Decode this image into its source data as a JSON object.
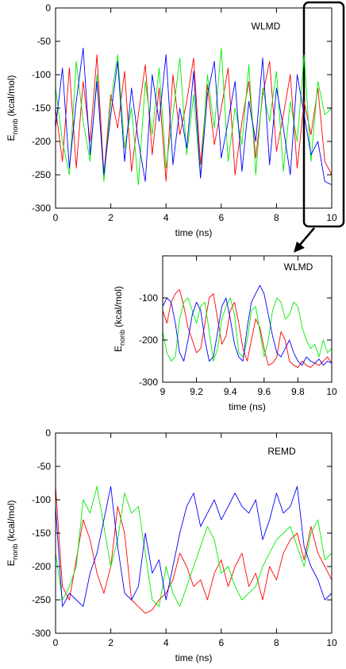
{
  "chart_data": [
    {
      "type": "line",
      "annotation": "WLMD",
      "xlabel": "time (ns)",
      "ylabel": "E",
      "ylabel_sub": "nonb",
      "ylabel_unit": "(kcal/mol)",
      "xlim": [
        0,
        10
      ],
      "xticks": [
        0,
        2,
        4,
        6,
        8,
        10
      ],
      "ylim": [
        -300,
        0
      ],
      "yticks": [
        0,
        -50,
        -100,
        -150,
        -200,
        -250,
        -300
      ],
      "x": [
        0,
        0.25,
        0.5,
        0.75,
        1,
        1.25,
        1.5,
        1.75,
        2,
        2.25,
        2.5,
        2.75,
        3,
        3.25,
        3.5,
        3.75,
        4,
        4.25,
        4.5,
        4.75,
        5,
        5.25,
        5.5,
        5.75,
        6,
        6.25,
        6.5,
        6.75,
        7,
        7.25,
        7.5,
        7.75,
        8,
        8.25,
        8.5,
        8.75,
        9,
        9.25,
        9.5,
        9.75,
        10
      ],
      "series": [
        {
          "color": "#ff0000",
          "values": [
            -150,
            -230,
            -90,
            -240,
            -110,
            -200,
            -70,
            -250,
            -130,
            -180,
            -95,
            -245,
            -160,
            -85,
            -220,
            -120,
            -260,
            -100,
            -190,
            -140,
            -75,
            -235,
            -115,
            -205,
            -150,
            -90,
            -250,
            -170,
            -110,
            -225,
            -130,
            -80,
            -215,
            -160,
            -100,
            -240,
            -140,
            -190,
            -120,
            -230,
            -250
          ]
        },
        {
          "color": "#00ee00",
          "values": [
            -120,
            -200,
            -250,
            -80,
            -170,
            -230,
            -100,
            -260,
            -140,
            -70,
            -210,
            -150,
            -265,
            -110,
            -190,
            -90,
            -240,
            -160,
            -75,
            -220,
            -130,
            -255,
            -100,
            -180,
            -60,
            -230,
            -150,
            -205,
            -85,
            -250,
            -120,
            -170,
            -95,
            -245,
            -140,
            -200,
            -70,
            -230,
            -110,
            -160,
            -150
          ]
        },
        {
          "color": "#0000ff",
          "values": [
            -180,
            -90,
            -240,
            -140,
            -60,
            -220,
            -110,
            -250,
            -160,
            -80,
            -230,
            -120,
            -200,
            -260,
            -100,
            -170,
            -70,
            -235,
            -150,
            -210,
            -95,
            -255,
            -130,
            -80,
            -225,
            -170,
            -110,
            -245,
            -140,
            -200,
            -75,
            -235,
            -120,
            -180,
            -250,
            -100,
            -160,
            -220,
            -200,
            -260,
            -265
          ]
        }
      ]
    },
    {
      "type": "line",
      "annotation": "WLMD",
      "xlabel": "time (ns)",
      "ylabel": "E",
      "ylabel_sub": "nonb",
      "ylabel_unit": "(kcal/mol)",
      "xlim": [
        9,
        10
      ],
      "xticks": [
        9,
        9.2,
        9.4,
        9.6,
        9.8,
        10
      ],
      "ylim": [
        -300,
        0
      ],
      "yticks": [
        -100,
        -200,
        -300
      ],
      "x": [
        9,
        9.025,
        9.05,
        9.075,
        9.1,
        9.125,
        9.15,
        9.175,
        9.2,
        9.225,
        9.25,
        9.275,
        9.3,
        9.325,
        9.35,
        9.375,
        9.4,
        9.425,
        9.45,
        9.475,
        9.5,
        9.525,
        9.55,
        9.575,
        9.6,
        9.625,
        9.65,
        9.675,
        9.7,
        9.725,
        9.75,
        9.775,
        9.8,
        9.825,
        9.85,
        9.875,
        9.9,
        9.925,
        9.95,
        9.975,
        10
      ],
      "series": [
        {
          "color": "#ff0000",
          "values": [
            -130,
            -160,
            -110,
            -90,
            -80,
            -120,
            -170,
            -200,
            -230,
            -220,
            -160,
            -100,
            -90,
            -150,
            -210,
            -190,
            -130,
            -110,
            -160,
            -220,
            -250,
            -200,
            -150,
            -170,
            -220,
            -260,
            -255,
            -240,
            -180,
            -200,
            -250,
            -260,
            -265,
            -250,
            -260,
            -265,
            -255,
            -260,
            -250,
            -240,
            -255
          ]
        },
        {
          "color": "#00ee00",
          "values": [
            -180,
            -230,
            -250,
            -240,
            -150,
            -110,
            -100,
            -130,
            -160,
            -120,
            -110,
            -180,
            -250,
            -220,
            -150,
            -120,
            -100,
            -140,
            -230,
            -240,
            -200,
            -130,
            -120,
            -180,
            -240,
            -200,
            -130,
            -100,
            -110,
            -150,
            -140,
            -110,
            -120,
            -170,
            -200,
            -220,
            -210,
            -240,
            -200,
            -230,
            -220
          ]
        },
        {
          "color": "#0000ff",
          "values": [
            -120,
            -100,
            -110,
            -160,
            -230,
            -250,
            -200,
            -140,
            -110,
            -130,
            -200,
            -250,
            -240,
            -180,
            -120,
            -100,
            -150,
            -210,
            -240,
            -250,
            -170,
            -110,
            -90,
            -70,
            -90,
            -140,
            -190,
            -230,
            -240,
            -220,
            -200,
            -230,
            -250,
            -260,
            -240,
            -250,
            -255,
            -245,
            -260,
            -250,
            -255
          ]
        }
      ]
    },
    {
      "type": "line",
      "annotation": "REMD",
      "xlabel": "time (ns)",
      "ylabel": "E",
      "ylabel_sub": "nonb",
      "ylabel_unit": "(kcal/mol)",
      "xlim": [
        0,
        10
      ],
      "xticks": [
        0,
        2,
        4,
        6,
        8,
        10
      ],
      "ylim": [
        -300,
        0
      ],
      "yticks": [
        0,
        -50,
        -100,
        -150,
        -200,
        -250,
        -300
      ],
      "x": [
        0,
        0.25,
        0.5,
        0.75,
        1,
        1.25,
        1.5,
        1.75,
        2,
        2.25,
        2.5,
        2.75,
        3,
        3.25,
        3.5,
        3.75,
        4,
        4.25,
        4.5,
        4.75,
        5,
        5.25,
        5.5,
        5.75,
        6,
        6.25,
        6.5,
        6.75,
        7,
        7.25,
        7.5,
        7.75,
        8,
        8.25,
        8.5,
        8.75,
        9,
        9.25,
        9.5,
        9.75,
        10
      ],
      "series": [
        {
          "color": "#ff0000",
          "values": [
            -80,
            -230,
            -250,
            -190,
            -130,
            -160,
            -210,
            -240,
            -200,
            -110,
            -150,
            -250,
            -260,
            -270,
            -265,
            -250,
            -240,
            -220,
            -180,
            -200,
            -230,
            -220,
            -250,
            -210,
            -190,
            -230,
            -200,
            -180,
            -230,
            -210,
            -250,
            -200,
            -220,
            -180,
            -160,
            -150,
            -190,
            -140,
            -180,
            -200,
            -220
          ]
        },
        {
          "color": "#00ee00",
          "values": [
            -180,
            -250,
            -230,
            -200,
            -100,
            -120,
            -80,
            -140,
            -200,
            -160,
            -90,
            -120,
            -110,
            -180,
            -250,
            -260,
            -200,
            -240,
            -260,
            -230,
            -200,
            -170,
            -140,
            -160,
            -210,
            -200,
            -230,
            -250,
            -240,
            -230,
            -200,
            -180,
            -160,
            -150,
            -140,
            -170,
            -200,
            -150,
            -130,
            -190,
            -180
          ]
        },
        {
          "color": "#0000ff",
          "values": [
            -110,
            -260,
            -240,
            -250,
            -260,
            -210,
            -180,
            -130,
            -80,
            -170,
            -240,
            -250,
            -230,
            -150,
            -210,
            -190,
            -250,
            -200,
            -150,
            -110,
            -90,
            -140,
            -120,
            -100,
            -130,
            -110,
            -90,
            -110,
            -120,
            -100,
            -160,
            -130,
            -90,
            -120,
            -110,
            -80,
            -170,
            -200,
            -220,
            -250,
            -240
          ]
        }
      ]
    }
  ]
}
